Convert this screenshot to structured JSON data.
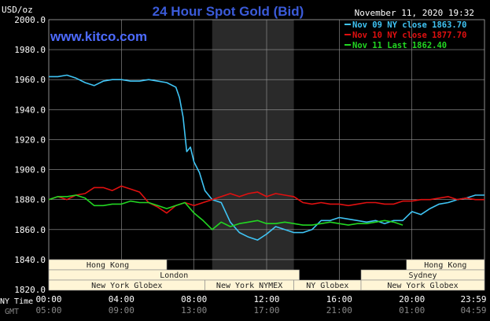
{
  "header": {
    "title": "24 Hour Spot Gold (Bid)",
    "units": "USD/oz",
    "website": "www.kitco.com",
    "timestamp": "November 11, 2020 19:32"
  },
  "colors": {
    "background": "#000000",
    "grid": "#9a9a9a",
    "title": "#3b5bd9",
    "website": "#4d6bff",
    "axis_text": "#ffffff",
    "nov09": "#3fc4f4",
    "nov10": "#e01010",
    "nov11": "#22d622",
    "session_fill": "#fff5d6",
    "highlight_band": "#2a2a2a"
  },
  "chart_data": {
    "type": "line",
    "title": "24 Hour Spot Gold (Bid)",
    "ylabel": "USD/oz",
    "ylim": [
      1820,
      2000
    ],
    "yticks": [
      "2000.0",
      "1980.0",
      "1960.0",
      "1940.0",
      "1920.0",
      "1900.0",
      "1880.0",
      "1860.0",
      "1840.0",
      "1820.0"
    ],
    "xlim": [
      0,
      24
    ],
    "xticks_ny": [
      "00:00",
      "04:00",
      "08:00",
      "12:00",
      "16:00",
      "20:00",
      "23:59"
    ],
    "xticks_gmt": [
      "05:00",
      "09:00",
      "13:00",
      "17:00",
      "21:00",
      "01:00",
      "04:59"
    ],
    "row_labels": [
      "NY Time",
      "GMT"
    ],
    "grid": true,
    "legend_position": "top-right",
    "highlight_hours": [
      9,
      13.5
    ],
    "series": [
      {
        "name": "Nov 09 NY close 1863.70",
        "color": "#3fc4f4",
        "x": [
          0,
          0.5,
          1,
          1.5,
          2,
          2.5,
          3,
          3.5,
          4,
          4.5,
          5,
          5.5,
          6,
          6.5,
          7,
          7.2,
          7.4,
          7.6,
          7.8,
          8,
          8.3,
          8.6,
          9,
          9.5,
          10,
          10.5,
          11,
          11.5,
          12,
          12.5,
          13,
          13.5,
          14,
          14.5,
          15,
          15.5,
          16,
          16.5,
          17,
          17.5,
          18,
          18.5,
          19,
          19.5,
          20,
          20.5,
          21,
          21.5,
          22,
          22.5,
          23,
          23.5,
          24
        ],
        "y": [
          1962,
          1962,
          1963,
          1961,
          1958,
          1956,
          1959,
          1960,
          1960,
          1959,
          1959,
          1960,
          1959,
          1958,
          1955,
          1948,
          1935,
          1912,
          1915,
          1905,
          1898,
          1886,
          1880,
          1878,
          1865,
          1858,
          1855,
          1853,
          1857,
          1862,
          1860,
          1858,
          1858,
          1860,
          1866,
          1866,
          1868,
          1867,
          1866,
          1865,
          1866,
          1864,
          1866,
          1866,
          1872,
          1870,
          1874,
          1877,
          1878,
          1880,
          1881,
          1883,
          1883
        ]
      },
      {
        "name": "Nov 10 NY close 1877.70",
        "color": "#e01010",
        "x": [
          0,
          0.5,
          1,
          1.5,
          2,
          2.5,
          3,
          3.5,
          4,
          4.5,
          5,
          5.5,
          6,
          6.5,
          7,
          7.5,
          8,
          8.5,
          9,
          9.5,
          10,
          10.5,
          11,
          11.5,
          12,
          12.5,
          13,
          13.5,
          14,
          14.5,
          15,
          15.5,
          16,
          16.5,
          17,
          17.5,
          18,
          18.5,
          19,
          19.5,
          20,
          20.5,
          21,
          21.5,
          22,
          22.5,
          23,
          23.5,
          24
        ],
        "y": [
          1880,
          1882,
          1880,
          1883,
          1884,
          1888,
          1888,
          1886,
          1889,
          1887,
          1885,
          1878,
          1875,
          1871,
          1876,
          1878,
          1876,
          1878,
          1880,
          1882,
          1884,
          1882,
          1884,
          1885,
          1882,
          1884,
          1883,
          1882,
          1878,
          1877,
          1878,
          1877,
          1877,
          1876,
          1877,
          1878,
          1878,
          1877,
          1877,
          1879,
          1879,
          1880,
          1880,
          1881,
          1882,
          1880,
          1881,
          1880,
          1880
        ]
      },
      {
        "name": "Nov 11 Last 1862.40",
        "color": "#22d622",
        "x": [
          0,
          0.5,
          1,
          1.5,
          2,
          2.5,
          3,
          3.5,
          4,
          4.5,
          5,
          5.5,
          6,
          6.5,
          7,
          7.5,
          8,
          8.5,
          9,
          9.5,
          10,
          10.5,
          11,
          11.5,
          12,
          12.5,
          13,
          13.5,
          14,
          14.5,
          15,
          15.5,
          16,
          16.5,
          17,
          17.5,
          18,
          18.5,
          19,
          19.5
        ],
        "y": [
          1880,
          1882,
          1882,
          1883,
          1881,
          1876,
          1876,
          1877,
          1877,
          1879,
          1878,
          1878,
          1876,
          1874,
          1876,
          1878,
          1871,
          1866,
          1860,
          1865,
          1862,
          1864,
          1865,
          1866,
          1864,
          1864,
          1865,
          1864,
          1863,
          1863,
          1864,
          1865,
          1864,
          1863,
          1864,
          1864,
          1865,
          1866,
          1865,
          1863
        ]
      }
    ]
  },
  "market_sessions": [
    {
      "label": "Hong Kong",
      "start": 0,
      "end": 6.5,
      "row": 0
    },
    {
      "label": "Hong Kong",
      "start": 19.7,
      "end": 24,
      "row": 0
    },
    {
      "label": "London",
      "start": 0,
      "end": 13.8,
      "row": 1
    },
    {
      "label": "Sydney",
      "start": 17.2,
      "end": 24,
      "row": 1
    },
    {
      "label": "New York Globex",
      "start": 0,
      "end": 8.6,
      "row": 2
    },
    {
      "label": "New York NYMEX",
      "start": 8.6,
      "end": 13.5,
      "row": 2
    },
    {
      "label": "NY Globex",
      "start": 13.5,
      "end": 17.2,
      "row": 2
    },
    {
      "label": "New York Globex",
      "start": 17.2,
      "end": 24,
      "row": 2
    }
  ]
}
